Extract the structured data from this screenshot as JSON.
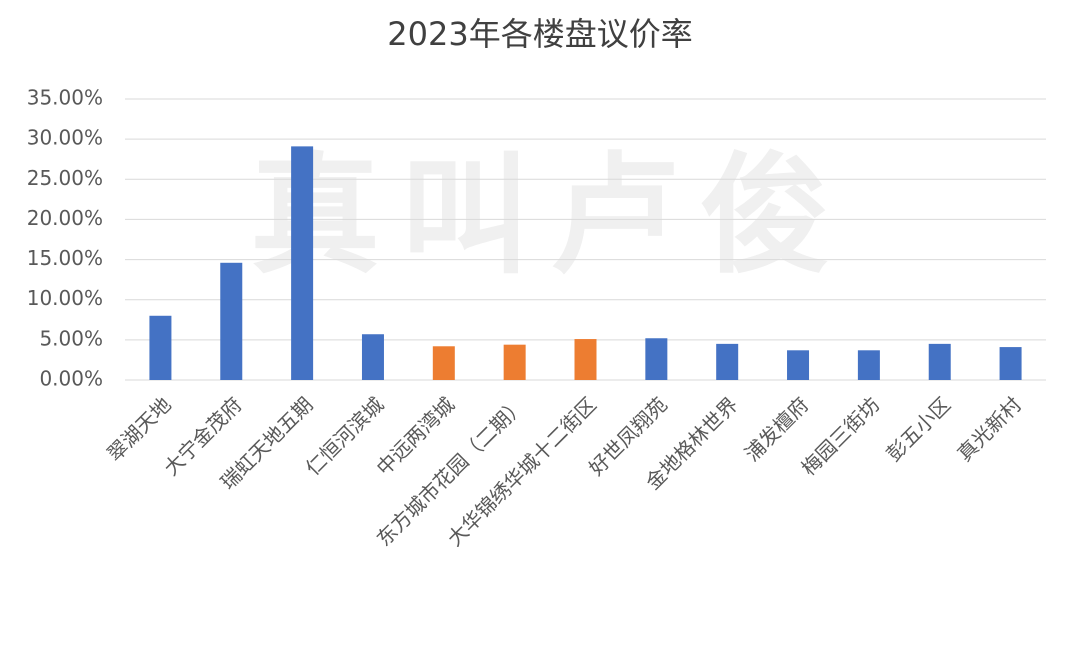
{
  "chart_data": {
    "type": "bar",
    "title": "2023年各楼盘议价率",
    "watermark": "真叫卢俊",
    "categories": [
      "翠湖天地",
      "大宁金茂府",
      "瑞虹天地五期",
      "仁恒河滨城",
      "中远两湾城",
      "东方城市花园（二期）",
      "大华锦绣华城十二街区",
      "好世凤翔苑",
      "金地格林世界",
      "浦发檀府",
      "梅园三街坊",
      "彭五小区",
      "真光新村"
    ],
    "values": [
      8.0,
      14.6,
      29.1,
      5.7,
      4.2,
      4.4,
      5.1,
      5.2,
      4.5,
      3.7,
      3.7,
      4.5,
      4.1
    ],
    "colors": [
      "#4472c4",
      "#4472c4",
      "#4472c4",
      "#4472c4",
      "#ed7d31",
      "#ed7d31",
      "#ed7d31",
      "#4472c4",
      "#4472c4",
      "#4472c4",
      "#4472c4",
      "#4472c4",
      "#4472c4"
    ],
    "ylim": [
      0,
      35
    ],
    "yticks": [
      {
        "value": 0,
        "label": "0.00%"
      },
      {
        "value": 5,
        "label": "5.00%"
      },
      {
        "value": 10,
        "label": "10.00%"
      },
      {
        "value": 15,
        "label": "15.00%"
      },
      {
        "value": 20,
        "label": "20.00%"
      },
      {
        "value": 25,
        "label": "25.00%"
      },
      {
        "value": 30,
        "label": "30.00%"
      },
      {
        "value": 35,
        "label": "35.00%"
      }
    ],
    "grid": true
  }
}
